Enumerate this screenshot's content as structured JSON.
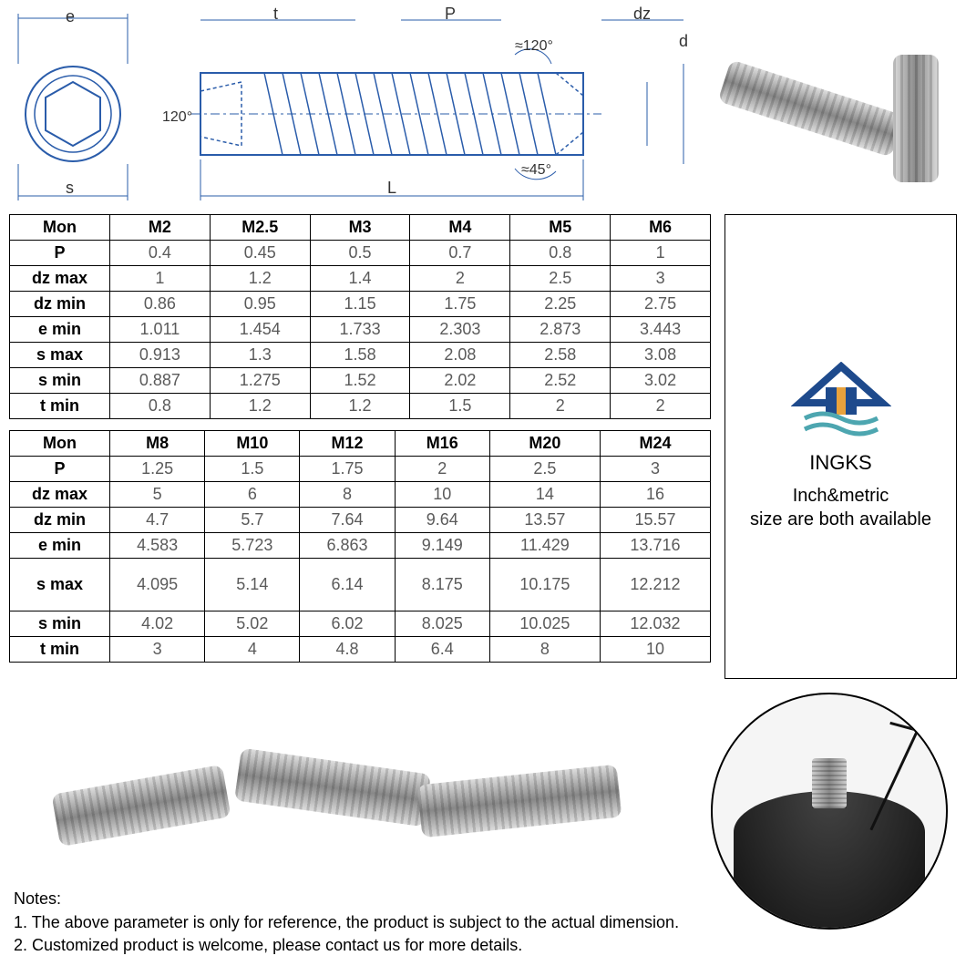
{
  "diagram": {
    "labels": {
      "e": "e",
      "s": "s",
      "t": "t",
      "P": "P",
      "dz": "dz",
      "d": "d",
      "L": "L",
      "ang120a": "120°",
      "ang120b": "≈120°",
      "ang45": "≈45°"
    }
  },
  "table1": {
    "header": [
      "Mon",
      "M2",
      "M2.5",
      "M3",
      "M4",
      "M5",
      "M6"
    ],
    "rows": [
      {
        "label": "P",
        "vals": [
          "0.4",
          "0.45",
          "0.5",
          "0.7",
          "0.8",
          "1"
        ]
      },
      {
        "label": "dz max",
        "vals": [
          "1",
          "1.2",
          "1.4",
          "2",
          "2.5",
          "3"
        ]
      },
      {
        "label": "dz min",
        "vals": [
          "0.86",
          "0.95",
          "1.15",
          "1.75",
          "2.25",
          "2.75"
        ]
      },
      {
        "label": "e min",
        "vals": [
          "1.011",
          "1.454",
          "1.733",
          "2.303",
          "2.873",
          "3.443"
        ]
      },
      {
        "label": "s max",
        "vals": [
          "0.913",
          "1.3",
          "1.58",
          "2.08",
          "2.58",
          "3.08"
        ]
      },
      {
        "label": "s min",
        "vals": [
          "0.887",
          "1.275",
          "1.52",
          "2.02",
          "2.52",
          "3.02"
        ]
      },
      {
        "label": "t min",
        "vals": [
          "0.8",
          "1.2",
          "1.2",
          "1.5",
          "2",
          "2"
        ]
      }
    ]
  },
  "table2": {
    "header": [
      "Mon",
      "M8",
      "M10",
      "M12",
      "M16",
      "M20",
      "M24"
    ],
    "rows": [
      {
        "label": "P",
        "vals": [
          "1.25",
          "1.5",
          "1.75",
          "2",
          "2.5",
          "3"
        ]
      },
      {
        "label": "dz max",
        "vals": [
          "5",
          "6",
          "8",
          "10",
          "14",
          "16"
        ]
      },
      {
        "label": "dz min",
        "vals": [
          "4.7",
          "5.7",
          "7.64",
          "9.64",
          "13.57",
          "15.57"
        ]
      },
      {
        "label": "e min",
        "vals": [
          "4.583",
          "5.723",
          "6.863",
          "9.149",
          "11.429",
          "13.716"
        ]
      },
      {
        "label": "s max",
        "vals": [
          "4.095",
          "5.14",
          "6.14",
          "8.175",
          "10.175",
          "12.212"
        ],
        "tall": true
      },
      {
        "label": "s min",
        "vals": [
          "4.02",
          "5.02",
          "6.02",
          "8.025",
          "10.025",
          "12.032"
        ]
      },
      {
        "label": "t min",
        "vals": [
          "3",
          "4",
          "4.8",
          "6.4",
          "8",
          "10"
        ]
      }
    ]
  },
  "brand": {
    "name": "INGKS",
    "tagline1": "Inch&metric",
    "tagline2": "size are both available"
  },
  "notes": {
    "title": "Notes:",
    "line1": "1. The above parameter is only for reference, the product is subject to the actual dimension.",
    "line2": "2. Customized product is welcome, please contact us for more details."
  },
  "colors": {
    "border": "#000000",
    "text_dim": "#5a5a5a",
    "logo_blue": "#1e4a8c",
    "logo_orange": "#e8a23c",
    "logo_teal": "#4da6b0"
  }
}
